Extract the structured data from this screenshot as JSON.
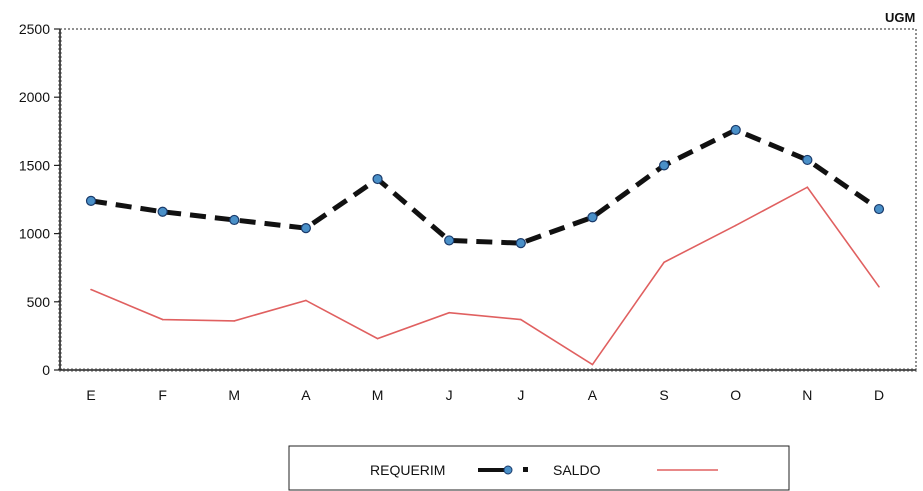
{
  "chart_data": {
    "type": "line",
    "title": "",
    "xlabel": "",
    "ylabel": "",
    "unit_label": "UGM",
    "categories": [
      "E",
      "F",
      "M",
      "A",
      "M",
      "J",
      "J",
      "A",
      "S",
      "O",
      "N",
      "D"
    ],
    "ylim": [
      0,
      2500
    ],
    "yticks": [
      0,
      500,
      1000,
      1500,
      2000,
      2500
    ],
    "grid": false,
    "legend_position": "bottom",
    "series": [
      {
        "name": "REQUERIM",
        "style": "dashed-markers",
        "color": "#111111",
        "marker_color": "#4a90c8",
        "values": [
          1240,
          1160,
          1100,
          1040,
          1400,
          950,
          930,
          1120,
          1500,
          1760,
          1540,
          1180
        ]
      },
      {
        "name": "SALDO",
        "style": "solid",
        "color": "#e06060",
        "values": [
          590,
          370,
          360,
          510,
          230,
          420,
          370,
          40,
          790,
          1060,
          1340,
          610
        ]
      }
    ]
  }
}
